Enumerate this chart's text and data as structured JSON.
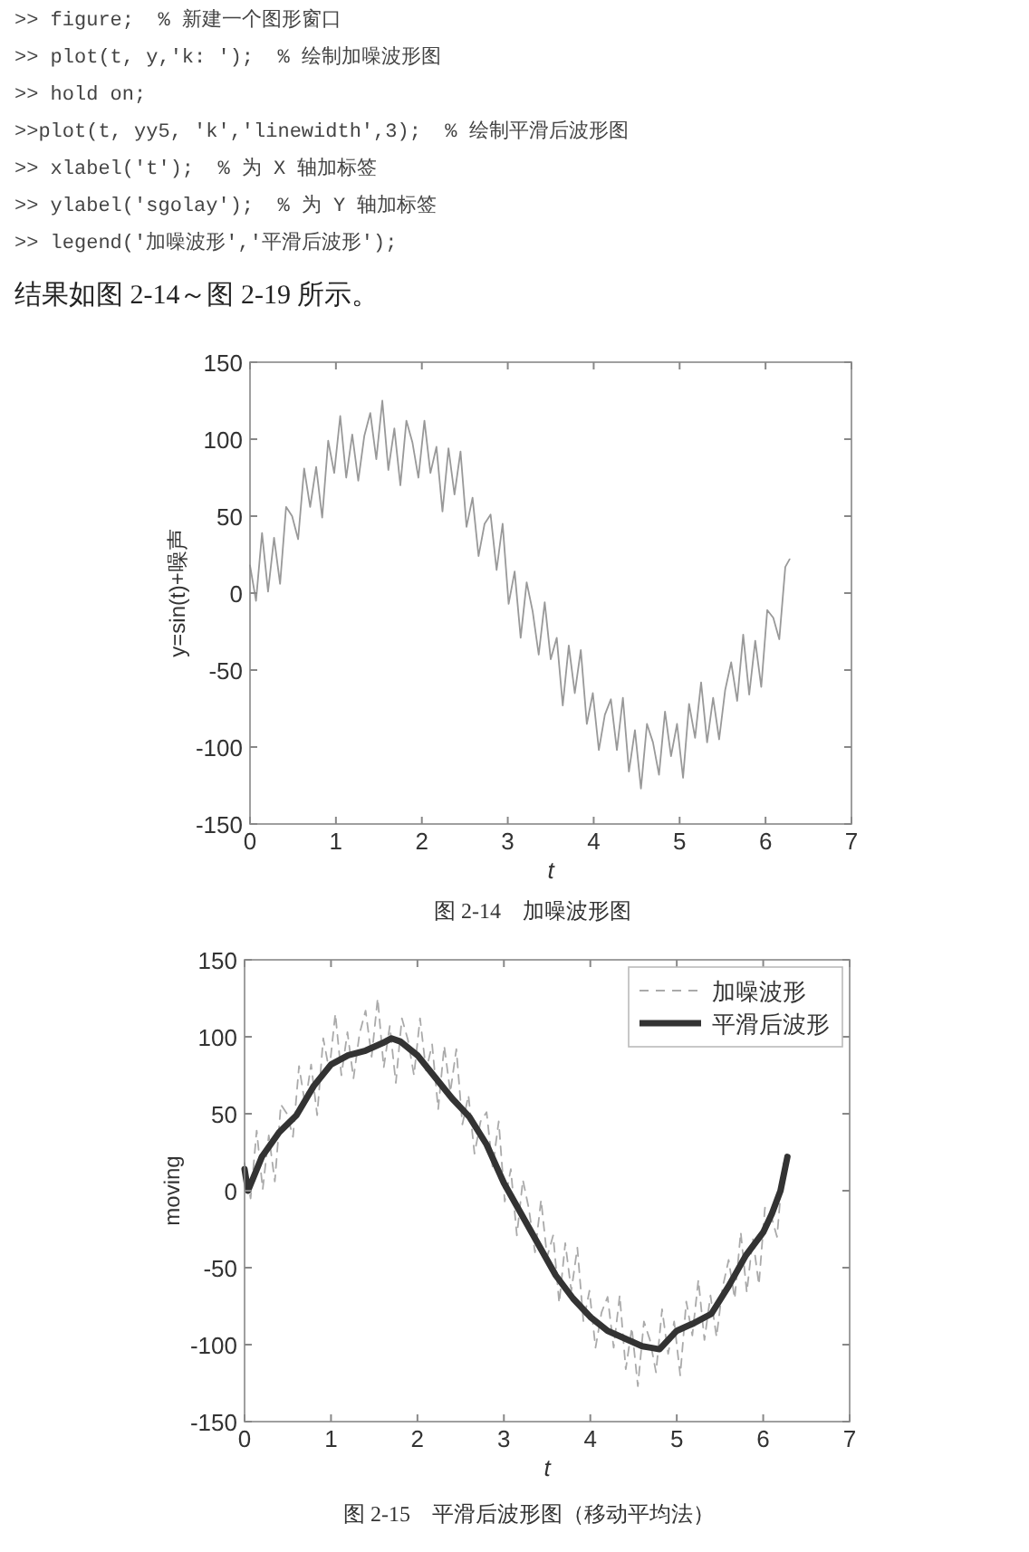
{
  "chart_data": [
    {
      "type": "line",
      "xlabel": "t",
      "ylabel": "y=sin(t)+噪声",
      "annotations": [
        ">> figure;  % 新建一个图形窗口",
        ">> plot(t, y,'k: ');  % 绘制加噪波形图",
        ">> hold on;",
        ">>plot(t, yy5, 'k','linewidth',3);  % 绘制平滑后波形图",
        ">> xlabel('t');  % 为 X 轴加标签",
        ">> ylabel('sgolay');  % 为 Y 轴加标签",
        ">> legend('加噪波形','平滑后波形');",
        "结果如图 2-14～图 2-19 所示。",
        "图 2-14　加噪波形图"
      ],
      "xlim": [
        0,
        7
      ],
      "ylim": [
        -150,
        150
      ],
      "xticks": [
        0,
        1,
        2,
        3,
        4,
        5,
        6,
        7
      ],
      "yticks": [
        -150,
        -100,
        -50,
        0,
        50,
        100,
        150
      ],
      "grid": false,
      "legend": false,
      "x": [
        0,
        0.07,
        0.14,
        0.21,
        0.28,
        0.35,
        0.42,
        0.49,
        0.56,
        0.63,
        0.7,
        0.77,
        0.84,
        0.91,
        0.98,
        1.05,
        1.12,
        1.19,
        1.26,
        1.33,
        1.4,
        1.47,
        1.54,
        1.61,
        1.68,
        1.75,
        1.82,
        1.89,
        1.96,
        2.03,
        2.1,
        2.17,
        2.24,
        2.31,
        2.38,
        2.45,
        2.52,
        2.59,
        2.66,
        2.73,
        2.8,
        2.87,
        2.94,
        3.01,
        3.08,
        3.15,
        3.22,
        3.29,
        3.36,
        3.43,
        3.5,
        3.57,
        3.64,
        3.71,
        3.78,
        3.85,
        3.92,
        3.99,
        4.06,
        4.13,
        4.2,
        4.27,
        4.34,
        4.41,
        4.48,
        4.55,
        4.62,
        4.69,
        4.76,
        4.83,
        4.9,
        4.97,
        5.04,
        5.11,
        5.18,
        5.25,
        5.32,
        5.39,
        5.46,
        5.53,
        5.6,
        5.67,
        5.74,
        5.81,
        5.88,
        5.95,
        6.02,
        6.09,
        6.16,
        6.23,
        6.28
      ],
      "series": [
        {
          "color": "#999999",
          "values": [
            18,
            -5,
            39,
            1,
            36,
            6,
            56,
            50,
            35,
            81,
            56,
            82,
            49,
            99,
            78,
            115,
            75,
            103,
            73,
            102,
            117,
            87,
            125,
            80,
            107,
            70,
            112,
            98,
            75,
            112,
            78,
            95,
            53,
            94,
            64,
            92,
            43,
            62,
            24,
            45,
            51,
            15,
            45,
            -7,
            14,
            -29,
            7,
            -12,
            -40,
            -6,
            -43,
            -29,
            -73,
            -34,
            -65,
            -37,
            -85,
            -65,
            -102,
            -79,
            -69,
            -102,
            -68,
            -116,
            -89,
            -127,
            -85,
            -97,
            -118,
            -77,
            -106,
            -85,
            -120,
            -72,
            -94,
            -58,
            -97,
            -68,
            -95,
            -63,
            -45,
            -70,
            -27,
            -66,
            -31,
            -61,
            -11,
            -16,
            -30,
            17,
            22
          ]
        }
      ]
    },
    {
      "type": "line",
      "xlabel": "t",
      "ylabel": "moving",
      "annotations": [
        "图 2-15　平滑后波形图（移动平均法）"
      ],
      "xlim": [
        0,
        7
      ],
      "ylim": [
        -150,
        150
      ],
      "xticks": [
        0,
        1,
        2,
        3,
        4,
        5,
        6,
        7
      ],
      "yticks": [
        -150,
        -100,
        -50,
        0,
        50,
        100,
        150
      ],
      "grid": false,
      "legend": "top right",
      "x": [
        0,
        0.07,
        0.14,
        0.21,
        0.28,
        0.35,
        0.42,
        0.49,
        0.56,
        0.63,
        0.7,
        0.77,
        0.84,
        0.91,
        0.98,
        1.05,
        1.12,
        1.19,
        1.26,
        1.33,
        1.4,
        1.47,
        1.54,
        1.61,
        1.68,
        1.75,
        1.82,
        1.89,
        1.96,
        2.03,
        2.1,
        2.17,
        2.24,
        2.31,
        2.38,
        2.45,
        2.52,
        2.59,
        2.66,
        2.73,
        2.8,
        2.87,
        2.94,
        3.01,
        3.08,
        3.15,
        3.22,
        3.29,
        3.36,
        3.43,
        3.5,
        3.57,
        3.64,
        3.71,
        3.78,
        3.85,
        3.92,
        3.99,
        4.06,
        4.13,
        4.2,
        4.27,
        4.34,
        4.41,
        4.48,
        4.55,
        4.62,
        4.69,
        4.76,
        4.83,
        4.9,
        4.97,
        5.04,
        5.11,
        5.18,
        5.25,
        5.32,
        5.39,
        5.46,
        5.53,
        5.6,
        5.67,
        5.74,
        5.81,
        5.88,
        5.95,
        6.02,
        6.09,
        6.16,
        6.23,
        6.28
      ],
      "series": [
        {
          "name": "加噪波形",
          "color": "#aaaaaa",
          "line_style": "dashed",
          "values": [
            18,
            -5,
            39,
            1,
            36,
            6,
            56,
            50,
            35,
            81,
            56,
            82,
            49,
            99,
            78,
            115,
            75,
            103,
            73,
            102,
            117,
            87,
            125,
            80,
            107,
            70,
            112,
            98,
            75,
            112,
            78,
            95,
            53,
            94,
            64,
            92,
            43,
            62,
            24,
            45,
            51,
            15,
            45,
            -7,
            14,
            -29,
            7,
            -12,
            -40,
            -6,
            -43,
            -29,
            -73,
            -34,
            -65,
            -37,
            -85,
            -65,
            -102,
            -79,
            -69,
            -102,
            -68,
            -116,
            -89,
            -127,
            -85,
            -97,
            -118,
            -77,
            -106,
            -85,
            -120,
            -72,
            -94,
            -58,
            -97,
            -68,
            -95,
            -63,
            -45,
            -70,
            -27,
            -66,
            -31,
            -61,
            -11,
            -16,
            -30,
            17,
            22
          ]
        },
        {
          "name": "平滑后波形",
          "color": "#333333",
          "line_style": "solid",
          "x": [
            0,
            0.04,
            0.2,
            0.4,
            0.6,
            0.8,
            1.0,
            1.2,
            1.4,
            1.6,
            1.7,
            1.8,
            2.0,
            2.2,
            2.4,
            2.6,
            2.8,
            3.0,
            3.2,
            3.4,
            3.6,
            3.8,
            4.0,
            4.2,
            4.4,
            4.6,
            4.7,
            4.8,
            4.9,
            5.0,
            5.2,
            5.4,
            5.6,
            5.8,
            6.0,
            6.1,
            6.2,
            6.28
          ],
          "values": [
            14,
            0,
            22,
            38,
            49,
            68,
            82,
            88,
            91,
            96,
            99,
            97,
            88,
            74,
            60,
            48,
            30,
            5,
            -15,
            -35,
            -55,
            -70,
            -82,
            -91,
            -96,
            -101,
            -102,
            -103,
            -97,
            -91,
            -86,
            -80,
            -62,
            -42,
            -27,
            -15,
            0,
            22
          ]
        }
      ]
    }
  ]
}
